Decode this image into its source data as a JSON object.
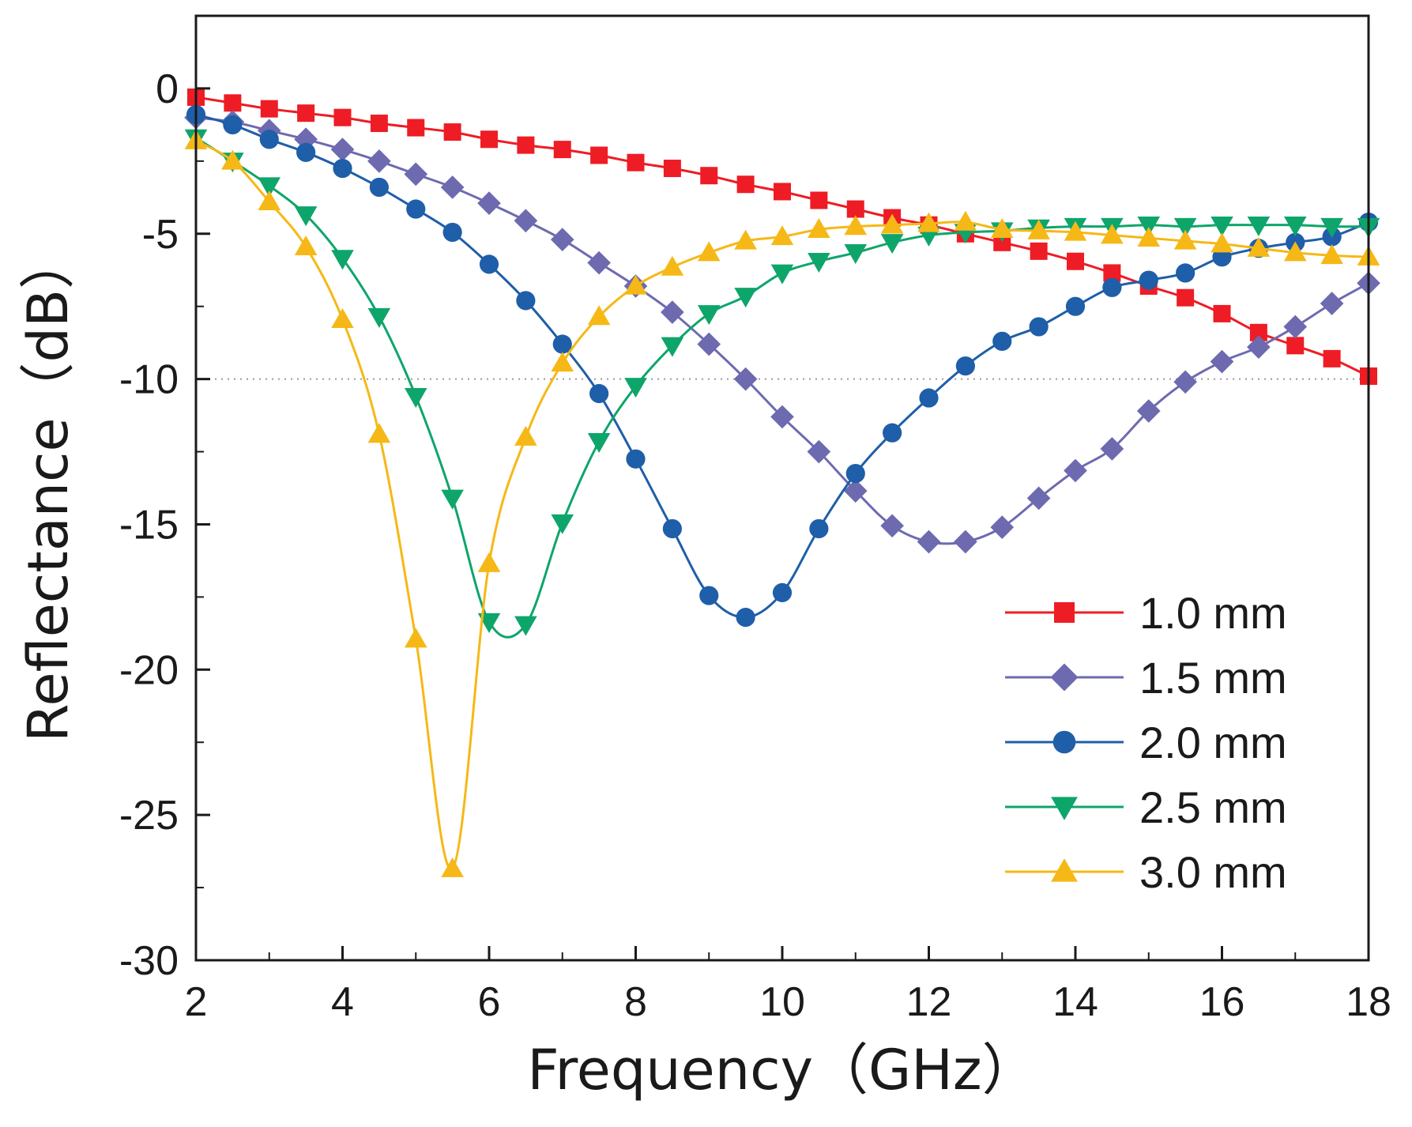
{
  "chart_data": {
    "type": "line",
    "title": "",
    "xlabel": "Frequency（GHz）",
    "ylabel": "Reflectance（dB）",
    "xlim": [
      2,
      18
    ],
    "ylim": [
      -30,
      2.5
    ],
    "x_ticks": [
      2,
      4,
      6,
      8,
      10,
      12,
      14,
      16,
      18
    ],
    "y_ticks": [
      0,
      -5,
      -10,
      -15,
      -20,
      -25,
      -30
    ],
    "reference_line": -10,
    "legend_position": "bottom-right",
    "series": [
      {
        "name": "1.0 mm",
        "color": "#ee1c25",
        "marker": "square",
        "x": [
          2.0,
          2.5,
          3.0,
          3.5,
          4.0,
          4.5,
          5.0,
          5.5,
          6.0,
          6.5,
          7.0,
          7.5,
          8.0,
          8.5,
          9.0,
          9.5,
          10.0,
          10.5,
          11.0,
          11.5,
          12.0,
          12.5,
          13.0,
          13.5,
          14.0,
          14.5,
          15.0,
          15.5,
          16.0,
          16.5,
          17.0,
          17.5,
          18.0
        ],
        "y": [
          -0.3,
          -0.5,
          -0.7,
          -0.85,
          -1.0,
          -1.2,
          -1.35,
          -1.5,
          -1.75,
          -1.95,
          -2.1,
          -2.3,
          -2.55,
          -2.75,
          -3.0,
          -3.3,
          -3.55,
          -3.85,
          -4.15,
          -4.45,
          -4.7,
          -5.0,
          -5.3,
          -5.6,
          -5.95,
          -6.35,
          -6.8,
          -7.2,
          -7.75,
          -8.4,
          -8.85,
          -9.3,
          -9.9
        ]
      },
      {
        "name": "1.5 mm",
        "color": "#6d6ab0",
        "marker": "diamond",
        "x": [
          2.0,
          2.5,
          3.0,
          3.5,
          4.0,
          4.5,
          5.0,
          5.5,
          6.0,
          6.5,
          7.0,
          7.5,
          8.0,
          8.5,
          9.0,
          9.5,
          10.0,
          10.5,
          11.0,
          11.5,
          12.0,
          12.5,
          13.0,
          13.5,
          14.0,
          14.5,
          15.0,
          15.5,
          16.0,
          16.5,
          17.0,
          17.5,
          18.0
        ],
        "y": [
          -1.0,
          -1.15,
          -1.45,
          -1.75,
          -2.1,
          -2.5,
          -2.95,
          -3.4,
          -3.95,
          -4.55,
          -5.2,
          -6.0,
          -6.8,
          -7.7,
          -8.8,
          -10.0,
          -11.3,
          -12.5,
          -13.85,
          -15.05,
          -15.6,
          -15.6,
          -15.1,
          -14.1,
          -13.15,
          -12.4,
          -11.1,
          -10.1,
          -9.4,
          -8.9,
          -8.2,
          -7.4,
          -6.7
        ]
      },
      {
        "name": "2.0 mm",
        "color": "#1f5ea8",
        "marker": "circle",
        "x": [
          2.0,
          2.5,
          3.0,
          3.5,
          4.0,
          4.5,
          5.0,
          5.5,
          6.0,
          6.5,
          7.0,
          7.5,
          8.0,
          8.5,
          9.0,
          9.5,
          10.0,
          10.5,
          11.0,
          11.5,
          12.0,
          12.5,
          13.0,
          13.5,
          14.0,
          14.5,
          15.0,
          15.5,
          16.0,
          16.5,
          17.0,
          17.5,
          18.0
        ],
        "y": [
          -0.9,
          -1.25,
          -1.75,
          -2.2,
          -2.75,
          -3.4,
          -4.15,
          -4.95,
          -6.05,
          -7.3,
          -8.8,
          -10.5,
          -12.75,
          -15.15,
          -17.45,
          -18.2,
          -17.35,
          -15.15,
          -13.25,
          -11.85,
          -10.65,
          -9.55,
          -8.7,
          -8.2,
          -7.5,
          -6.85,
          -6.6,
          -6.35,
          -5.8,
          -5.5,
          -5.3,
          -5.1,
          -4.6
        ]
      },
      {
        "name": "2.5 mm",
        "color": "#0ea56b",
        "marker": "triangle-down",
        "x": [
          2.0,
          2.5,
          3.0,
          3.5,
          4.0,
          4.5,
          5.0,
          5.5,
          6.0,
          6.5,
          7.0,
          7.5,
          8.0,
          8.5,
          9.0,
          9.5,
          10.0,
          10.5,
          11.0,
          11.5,
          12.0,
          12.5,
          13.0,
          13.5,
          14.0,
          14.5,
          15.0,
          15.5,
          16.0,
          16.5,
          17.0,
          17.5,
          18.0
        ],
        "y": [
          -1.7,
          -2.5,
          -3.35,
          -4.35,
          -5.85,
          -7.85,
          -10.6,
          -14.1,
          -18.35,
          -18.45,
          -14.95,
          -12.15,
          -10.25,
          -8.85,
          -7.75,
          -7.15,
          -6.35,
          -5.95,
          -5.65,
          -5.3,
          -5.05,
          -4.95,
          -4.9,
          -4.8,
          -4.75,
          -4.75,
          -4.7,
          -4.75,
          -4.7,
          -4.7,
          -4.7,
          -4.75,
          -4.75
        ]
      },
      {
        "name": "3.0 mm",
        "color": "#f5b816",
        "marker": "triangle-up",
        "x": [
          2.0,
          2.5,
          3.0,
          3.5,
          4.0,
          4.5,
          5.0,
          5.5,
          6.0,
          6.5,
          7.0,
          7.5,
          8.0,
          8.5,
          9.0,
          9.5,
          10.0,
          10.5,
          11.0,
          11.5,
          12.0,
          12.5,
          13.0,
          13.5,
          14.0,
          14.5,
          15.0,
          15.5,
          16.0,
          16.5,
          17.0,
          17.5,
          18.0
        ],
        "y": [
          -1.8,
          -2.5,
          -3.9,
          -5.45,
          -7.95,
          -11.9,
          -18.95,
          -26.85,
          -16.35,
          -12.0,
          -9.45,
          -7.85,
          -6.8,
          -6.15,
          -5.65,
          -5.25,
          -5.1,
          -4.85,
          -4.75,
          -4.7,
          -4.65,
          -4.6,
          -4.85,
          -4.9,
          -4.95,
          -5.05,
          -5.15,
          -5.25,
          -5.35,
          -5.5,
          -5.65,
          -5.75,
          -5.8
        ]
      }
    ]
  }
}
